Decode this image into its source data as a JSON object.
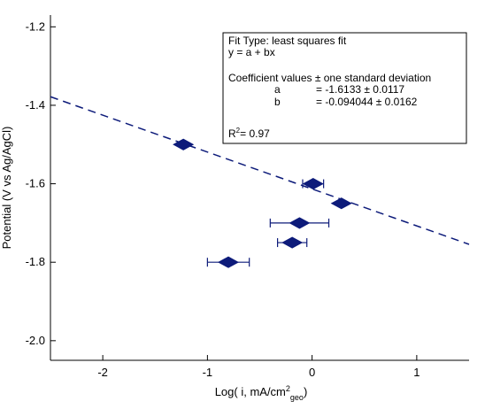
{
  "chart_data": {
    "type": "scatter",
    "xlabel": "Log( i, mA/cm",
    "xlabel_sup": "2",
    "xlabel_sub": "geo",
    "xlabel_end": ")",
    "ylabel": "Potential (V vs Ag/AgCl)",
    "xlim": [
      -2.5,
      1.5
    ],
    "ylim": [
      -2.05,
      -1.17
    ],
    "x_ticks": [
      -2,
      -1,
      0,
      1
    ],
    "x_tick_labels": [
      "-2",
      "-1",
      "0",
      "1"
    ],
    "y_ticks": [
      -1.2,
      -1.4,
      -1.6,
      -1.8,
      -2.0
    ],
    "y_tick_labels": [
      "-1.2",
      "-1.4",
      "-1.6",
      "-1.8",
      "-2.0"
    ],
    "grid": false,
    "colors": {
      "marker": "#0d1b7a",
      "fit_line": "#0d1b7a",
      "axes": "#000000"
    },
    "points": [
      {
        "x": -1.23,
        "y": -1.5,
        "xerr": 0.0
      },
      {
        "x": 0.01,
        "y": -1.6,
        "xerr": 0.1
      },
      {
        "x": 0.28,
        "y": -1.65,
        "xerr": 0.0
      },
      {
        "x": -0.12,
        "y": -1.7,
        "xerr": 0.28
      },
      {
        "x": -0.19,
        "y": -1.75,
        "xerr": 0.14
      },
      {
        "x": -0.8,
        "y": -1.8,
        "xerr": 0.2
      }
    ],
    "fit": {
      "a": -1.6133,
      "b": -0.094044,
      "x_range": [
        -2.5,
        1.5
      ]
    }
  },
  "fit_box": {
    "line1": "Fit Type: least squares fit",
    "line2": "y = a + bx",
    "line3": "Coefficient values ± one standard deviation",
    "a_name": "a",
    "a_value": "= -1.6133 ± 0.0117",
    "b_name": "b",
    "b_value": "= -0.094044 ± 0.0162",
    "r2_prefix": "R",
    "r2_sup": "2",
    "r2_value": "= 0.97"
  }
}
